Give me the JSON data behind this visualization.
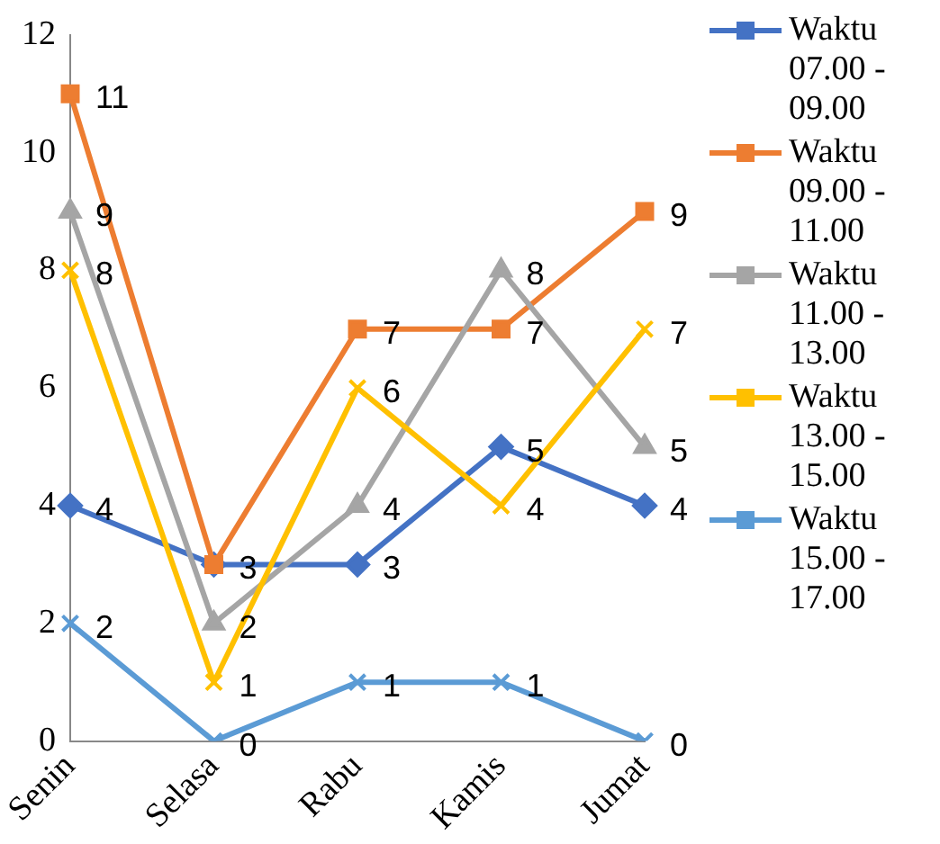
{
  "chart_data": {
    "type": "line",
    "categories": [
      "Senin",
      "Selasa",
      "Rabu",
      "Kamis",
      "Jumat"
    ],
    "series": [
      {
        "name": "Waktu 07.00 - 09.00",
        "color": "#4472c4",
        "marker": "diamond",
        "values": [
          4,
          3,
          3,
          5,
          4
        ],
        "value_labels": [
          "4",
          "3",
          "3",
          "5",
          "4"
        ]
      },
      {
        "name": "Waktu 09.00 - 11.00",
        "color": "#ed7d31",
        "marker": "square",
        "values": [
          11,
          3,
          7,
          7,
          9
        ],
        "value_labels": [
          "11",
          null,
          "7",
          "7",
          "9"
        ]
      },
      {
        "name": "Waktu 11.00 - 13.00",
        "color": "#a5a5a5",
        "marker": "triangle",
        "values": [
          9,
          2,
          4,
          8,
          5
        ],
        "value_labels": [
          "9",
          "2",
          "4",
          "8",
          "5"
        ]
      },
      {
        "name": "Waktu 13.00 - 15.00",
        "color": "#ffc000",
        "marker": "cross",
        "values": [
          8,
          1,
          6,
          4,
          7
        ],
        "value_labels": [
          "8",
          "1",
          "6",
          "4",
          "7"
        ]
      },
      {
        "name": "Waktu 15.00 - 17.00",
        "color": "#5b9bd5",
        "marker": "cross",
        "values": [
          2,
          0,
          1,
          1,
          0
        ],
        "value_labels": [
          "2",
          "0",
          "1",
          "1",
          "0"
        ]
      }
    ],
    "ylim": [
      0,
      12
    ],
    "yticks": [
      0,
      2,
      4,
      6,
      8,
      10,
      12
    ],
    "grid": false,
    "legend": "right",
    "line_style": "solid"
  }
}
